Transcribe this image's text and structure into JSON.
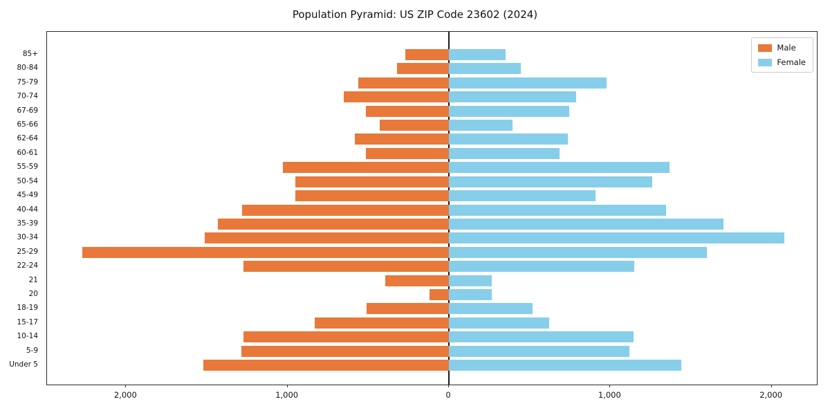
{
  "title": "Population Pyramid: US ZIP Code 23602 (2024)",
  "legend": {
    "male_label": "Male",
    "female_label": "Female"
  },
  "colors": {
    "male": "#e8793a",
    "female": "#87ceeb",
    "axis_line": "#1a1a1a",
    "legend_border": "#cccccc"
  },
  "chart_data": {
    "type": "bar",
    "subtype": "population-pyramid",
    "orientation": "horizontal",
    "title": "Population Pyramid: US ZIP Code 23602 (2024)",
    "xlabel": "",
    "ylabel": "",
    "categories_top_to_bottom": [
      "85+",
      "80-84",
      "75-79",
      "70-74",
      "67-69",
      "65-66",
      "62-64",
      "60-61",
      "55-59",
      "50-54",
      "45-49",
      "40-44",
      "35-39",
      "30-34",
      "25-29",
      "22-24",
      "21",
      "20",
      "18-19",
      "15-17",
      "10-14",
      "5-9",
      "Under 5"
    ],
    "series": [
      {
        "name": "Male",
        "side": "left",
        "color": "#e8793a",
        "values": [
          270,
          320,
          560,
          650,
          515,
          430,
          585,
          515,
          1030,
          950,
          950,
          1280,
          1430,
          1515,
          2270,
          1275,
          395,
          120,
          510,
          830,
          1275,
          1285,
          1520
        ]
      },
      {
        "name": "Female",
        "side": "right",
        "color": "#87ceeb",
        "values": [
          350,
          445,
          975,
          790,
          745,
          395,
          735,
          685,
          1365,
          1260,
          910,
          1345,
          1700,
          2080,
          1600,
          1150,
          265,
          265,
          520,
          620,
          1145,
          1120,
          1440
        ]
      }
    ],
    "xlim": [
      -2490,
      2280
    ],
    "x_ticks": [
      -2000,
      -1000,
      0,
      1000,
      2000
    ],
    "x_tick_labels": [
      "2,000",
      "1,000",
      "0",
      "1,000",
      "2,000"
    ],
    "grid": false,
    "legend_position": "upper right"
  }
}
